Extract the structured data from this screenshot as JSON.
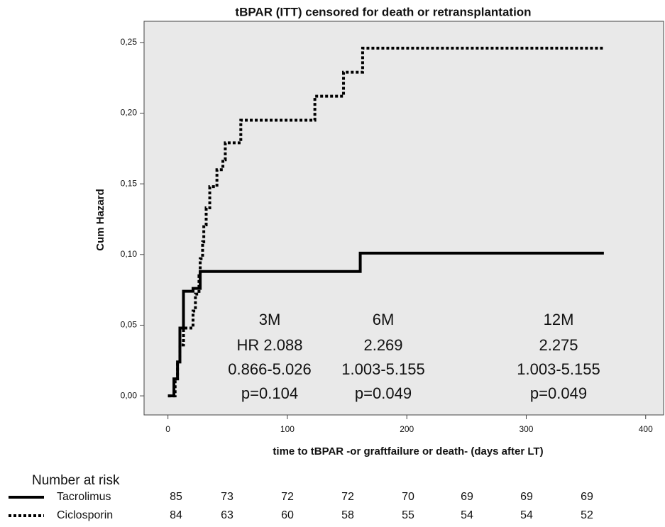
{
  "chart_data": {
    "type": "step",
    "title": "tBPAR (ITT) censored for death or retransplantation",
    "x_label": "time to tBPAR -or graftfailure or death- (days after LT)",
    "y_label": "Cum Hazard",
    "xlim": [
      -20,
      415
    ],
    "ylim": [
      -0.0135,
      0.265
    ],
    "xticks": [
      0,
      100,
      200,
      300,
      400
    ],
    "yticks": [
      {
        "value": 0,
        "label": "0,00"
      },
      {
        "value": 0.05,
        "label": "0,05"
      },
      {
        "value": 0.1,
        "label": "0,10"
      },
      {
        "value": 0.15,
        "label": "0,15"
      },
      {
        "value": 0.2,
        "label": "0,20"
      },
      {
        "value": 0.25,
        "label": "0,25"
      }
    ],
    "background": "#e9e9e9",
    "series": [
      {
        "name": "Tacrolimus",
        "color": "#000000",
        "dash": "solid",
        "x": [
          0,
          5,
          8,
          10,
          13,
          21,
          27,
          161,
          365
        ],
        "values": [
          0,
          0.012,
          0.024,
          0.048,
          0.074,
          0.076,
          0.088,
          0.101,
          0.101
        ],
        "at_risk": [
          85,
          73,
          72,
          72,
          70,
          69,
          69,
          69
        ]
      },
      {
        "name": "Ciclosporin",
        "color": "#000000",
        "dash": "dotted",
        "x": [
          0,
          6,
          8,
          10,
          13,
          21,
          23,
          26,
          27,
          29,
          30,
          32,
          35,
          41,
          46,
          48,
          61,
          123,
          147,
          163,
          365
        ],
        "values": [
          0,
          0.012,
          0.024,
          0.036,
          0.048,
          0.06,
          0.072,
          0.085,
          0.097,
          0.109,
          0.121,
          0.133,
          0.148,
          0.16,
          0.167,
          0.179,
          0.195,
          0.212,
          0.229,
          0.246,
          0.246
        ],
        "at_risk": [
          84,
          63,
          60,
          58,
          55,
          54,
          54,
          52
        ]
      }
    ],
    "risk_title": "Number at risk",
    "annotations": [
      {
        "lines": [
          "3M",
          "HR 2.088",
          "0.866-5.026",
          "p=0.104"
        ]
      },
      {
        "lines": [
          "6M",
          "2.269",
          "1.003-5.155",
          "p=0.049"
        ]
      },
      {
        "lines": [
          "12M",
          "2.275",
          "1.003-5.155",
          "p=0.049"
        ]
      }
    ]
  }
}
